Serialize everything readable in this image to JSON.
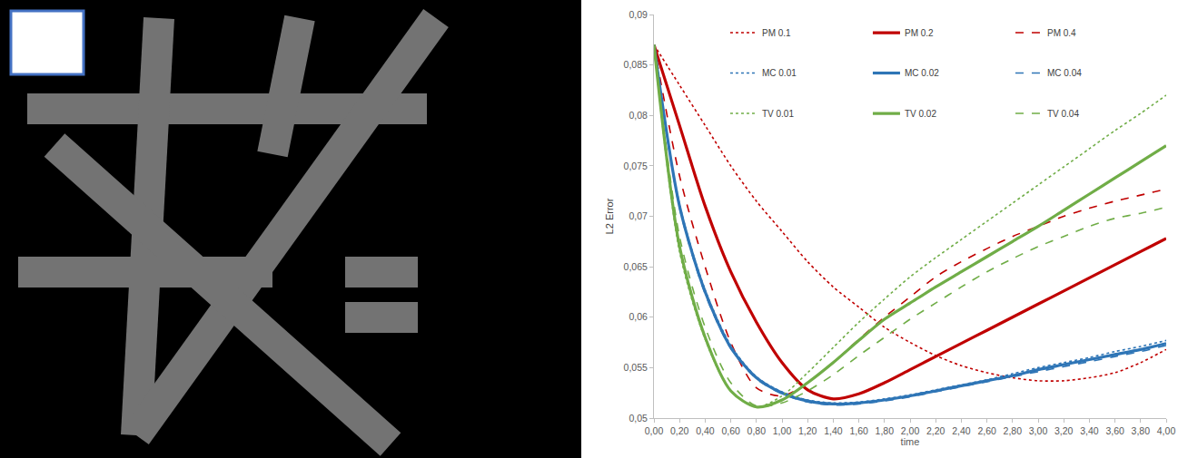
{
  "chart_data": {
    "type": "line",
    "x_label": "time",
    "y_label": "L2 Error",
    "x": [
      0.0,
      0.2,
      0.4,
      0.6,
      0.8,
      1.0,
      1.2,
      1.4,
      1.6,
      1.8,
      2.0,
      2.2,
      2.4,
      2.6,
      2.8,
      3.0,
      3.2,
      3.4,
      3.6,
      3.8,
      4.0
    ],
    "series": [
      {
        "name": "PM 0.1",
        "color": "#c00000",
        "line_style": "dot",
        "values": [
          0.087,
          0.083,
          0.079,
          0.075,
          0.0715,
          0.0685,
          0.0655,
          0.063,
          0.061,
          0.059,
          0.0575,
          0.0562,
          0.0552,
          0.0545,
          0.054,
          0.0537,
          0.0537,
          0.054,
          0.0545,
          0.0555,
          0.0568
        ]
      },
      {
        "name": "PM 0.2",
        "color": "#c00000",
        "line_style": "solid",
        "values": [
          0.087,
          0.079,
          0.071,
          0.0645,
          0.0595,
          0.0555,
          0.0528,
          0.0519,
          0.0524,
          0.0535,
          0.0548,
          0.0561,
          0.0574,
          0.0587,
          0.06,
          0.0613,
          0.0626,
          0.0639,
          0.0652,
          0.0665,
          0.0678
        ]
      },
      {
        "name": "PM 0.4",
        "color": "#c00000",
        "line_style": "dash",
        "values": [
          0.087,
          0.074,
          0.065,
          0.0575,
          0.053,
          0.0522,
          0.0535,
          0.0555,
          0.0578,
          0.06,
          0.062,
          0.064,
          0.0655,
          0.0668,
          0.068,
          0.069,
          0.07,
          0.0708,
          0.0715,
          0.0721,
          0.0727
        ]
      },
      {
        "name": "MC 0.01",
        "color": "#2e75b6",
        "line_style": "dot",
        "values": [
          0.087,
          0.0712,
          0.0627,
          0.0572,
          0.0541,
          0.0526,
          0.0518,
          0.0515,
          0.0516,
          0.0519,
          0.0523,
          0.0528,
          0.0533,
          0.0538,
          0.0544,
          0.055,
          0.0555,
          0.056,
          0.0566,
          0.0571,
          0.0577
        ]
      },
      {
        "name": "MC 0.02",
        "color": "#2e75b6",
        "line_style": "solid",
        "values": [
          0.087,
          0.071,
          0.0625,
          0.057,
          0.054,
          0.0525,
          0.0517,
          0.0514,
          0.0515,
          0.0518,
          0.0522,
          0.0527,
          0.0532,
          0.0537,
          0.0542,
          0.0548,
          0.0553,
          0.0558,
          0.0563,
          0.0568,
          0.0574
        ]
      },
      {
        "name": "MC 0.04",
        "color": "#2e75b6",
        "line_style": "dash",
        "values": [
          0.087,
          0.0708,
          0.0623,
          0.0569,
          0.0539,
          0.0524,
          0.0516,
          0.0513,
          0.0514,
          0.0517,
          0.0521,
          0.0526,
          0.0531,
          0.0536,
          0.0541,
          0.0546,
          0.0551,
          0.0556,
          0.0561,
          0.0566,
          0.0572
        ]
      },
      {
        "name": "TV 0.01",
        "color": "#70ad47",
        "line_style": "dot",
        "values": [
          0.087,
          0.0665,
          0.0578,
          0.0527,
          0.0511,
          0.0522,
          0.0545,
          0.057,
          0.0595,
          0.0618,
          0.064,
          0.0659,
          0.0677,
          0.0695,
          0.0713,
          0.0731,
          0.0749,
          0.0767,
          0.0785,
          0.0802,
          0.082
        ]
      },
      {
        "name": "TV 0.02",
        "color": "#70ad47",
        "line_style": "solid",
        "values": [
          0.087,
          0.067,
          0.058,
          0.0527,
          0.0511,
          0.0518,
          0.0535,
          0.0555,
          0.0577,
          0.0598,
          0.0614,
          0.063,
          0.0645,
          0.066,
          0.0675,
          0.069,
          0.0706,
          0.0722,
          0.0738,
          0.0754,
          0.077
        ]
      },
      {
        "name": "TV 0.04",
        "color": "#70ad47",
        "line_style": "dash",
        "values": [
          0.087,
          0.068,
          0.059,
          0.0535,
          0.0512,
          0.0515,
          0.0527,
          0.0543,
          0.0562,
          0.058,
          0.0598,
          0.0614,
          0.063,
          0.0645,
          0.0658,
          0.067,
          0.068,
          0.069,
          0.0698,
          0.0703,
          0.0709
        ]
      }
    ],
    "xlim": [
      0,
      4
    ],
    "xticks": [
      {
        "value": 0,
        "label": "0,00"
      },
      {
        "value": 0.2,
        "label": "0,20"
      },
      {
        "value": 0.4,
        "label": "0,40"
      },
      {
        "value": 0.6,
        "label": "0,60"
      },
      {
        "value": 0.8,
        "label": "0,80"
      },
      {
        "value": 1.0,
        "label": "1,00"
      },
      {
        "value": 1.2,
        "label": "1,20"
      },
      {
        "value": 1.4,
        "label": "1,40"
      },
      {
        "value": 1.6,
        "label": "1,60"
      },
      {
        "value": 1.8,
        "label": "1,80"
      },
      {
        "value": 2.0,
        "label": "2,00"
      },
      {
        "value": 2.2,
        "label": "2,20"
      },
      {
        "value": 2.4,
        "label": "2,40"
      },
      {
        "value": 2.6,
        "label": "2,60"
      },
      {
        "value": 2.8,
        "label": "2,80"
      },
      {
        "value": 3.0,
        "label": "3,00"
      },
      {
        "value": 3.2,
        "label": "3,20"
      },
      {
        "value": 3.4,
        "label": "3,40"
      },
      {
        "value": 3.6,
        "label": "3,60"
      },
      {
        "value": 3.8,
        "label": "3,80"
      },
      {
        "value": 4.0,
        "label": "4,00"
      }
    ],
    "ylim": [
      0.05,
      0.09
    ],
    "yticks": [
      {
        "value": 0.05,
        "label": "0,05"
      },
      {
        "value": 0.055,
        "label": "0,055"
      },
      {
        "value": 0.06,
        "label": "0,06"
      },
      {
        "value": 0.065,
        "label": "0,065"
      },
      {
        "value": 0.07,
        "label": "0,07"
      },
      {
        "value": 0.075,
        "label": "0,075"
      },
      {
        "value": 0.08,
        "label": "0,08"
      },
      {
        "value": 0.085,
        "label": "0,085"
      },
      {
        "value": 0.09,
        "label": "0,09"
      }
    ],
    "grid": false,
    "legend": "top"
  }
}
